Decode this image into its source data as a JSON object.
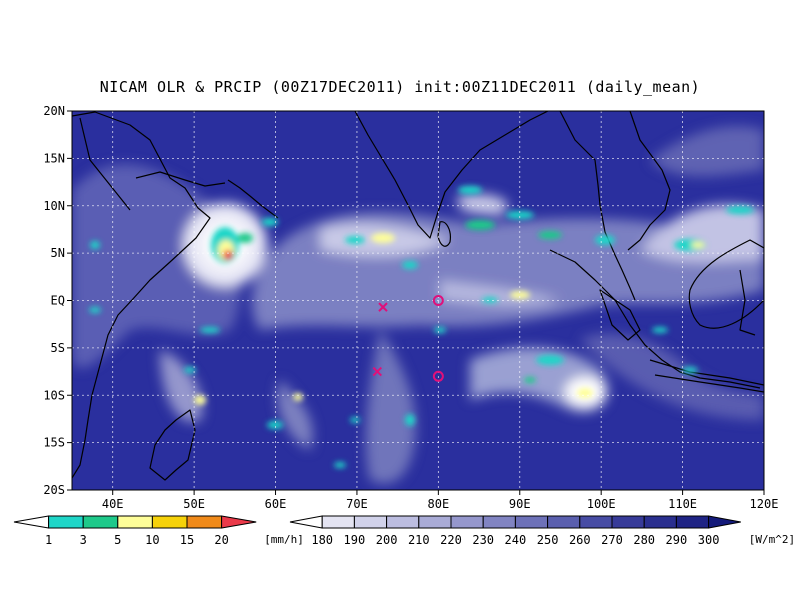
{
  "title": "NICAM OLR & PRCIP (00Z17DEC2011) init:00Z11DEC2011 (daily_mean)",
  "map": {
    "lon_range": [
      35,
      120
    ],
    "lat_range": [
      -20,
      20
    ],
    "lon_ticks": [
      "40E",
      "50E",
      "60E",
      "70E",
      "80E",
      "90E",
      "100E",
      "110E",
      "120E"
    ],
    "lat_ticks": [
      "20N",
      "15N",
      "10N",
      "5N",
      "EQ",
      "5S",
      "10S",
      "15S",
      "20S"
    ],
    "gridlines": true,
    "background_color": "#2a2f9e",
    "markers": [
      {
        "type": "cross",
        "lon": 73.2,
        "lat": -0.7,
        "color": "#e0107a"
      },
      {
        "type": "cross",
        "lon": 72.5,
        "lat": -7.5,
        "color": "#e0107a"
      },
      {
        "type": "circle",
        "lon": 80,
        "lat": 0,
        "color": "#e0107a"
      },
      {
        "type": "circle",
        "lon": 80,
        "lat": -8,
        "color": "#e0107a"
      }
    ]
  },
  "precip_legend": {
    "labels": [
      "1",
      "3",
      "5",
      "10",
      "15",
      "20"
    ],
    "unit": "[mm/h]",
    "colors": [
      "#ffffff",
      "#1fd6c8",
      "#1ec98a",
      "#fefe99",
      "#f6d20a",
      "#f08a1a",
      "#ea3a4a"
    ]
  },
  "olr_legend": {
    "labels": [
      "180",
      "190",
      "200",
      "210",
      "220",
      "230",
      "240",
      "250",
      "260",
      "270",
      "280",
      "290",
      "300"
    ],
    "unit": "[W/m^2]",
    "colors": [
      "#ffffff",
      "#e4e4f2",
      "#d1d2ea",
      "#bcbde0",
      "#a9abd6",
      "#9597cc",
      "#8184c2",
      "#6d71b8",
      "#5a5fae",
      "#474ca4",
      "#373b99",
      "#2a2f8f",
      "#1f2485",
      "#141a7a"
    ]
  }
}
